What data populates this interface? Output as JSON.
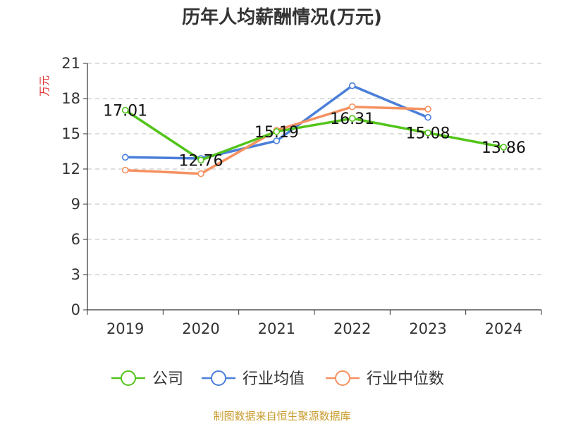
{
  "chart_data": {
    "type": "line",
    "title": "历年人均薪酬情况(万元)",
    "ylabel": "万元",
    "xlabel": "",
    "categories": [
      "2019",
      "2020",
      "2021",
      "2022",
      "2023",
      "2024"
    ],
    "ylim": [
      0,
      21
    ],
    "yticks": [
      0,
      3,
      6,
      9,
      12,
      15,
      18,
      21
    ],
    "grid": true,
    "legend_position": "bottom",
    "series": [
      {
        "name": "公司",
        "color": "#52c41a",
        "values": [
          17.01,
          12.76,
          15.19,
          16.31,
          15.08,
          13.86
        ],
        "labels": [
          "17.01",
          "12.76",
          "15.19",
          "16.31",
          "15.08",
          "13.86"
        ]
      },
      {
        "name": "行业均值",
        "color": "#4a7fd9",
        "values": [
          13.0,
          12.9,
          14.4,
          19.1,
          16.4,
          null
        ]
      },
      {
        "name": "行业中位数",
        "color": "#f59160",
        "values": [
          11.9,
          11.6,
          15.3,
          17.3,
          17.1,
          null
        ]
      }
    ]
  },
  "footer": {
    "source": "制图数据来自恒生聚源数据库"
  }
}
